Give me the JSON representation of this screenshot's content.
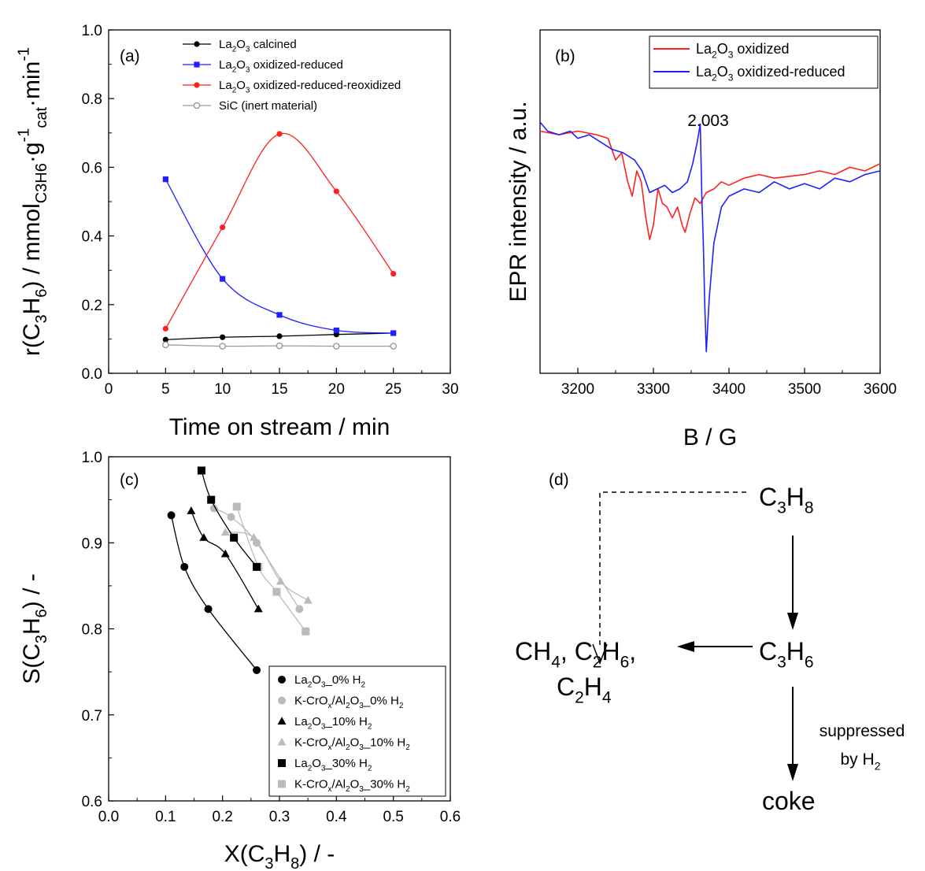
{
  "chart_data": [
    {
      "panel": "(a)",
      "type": "line",
      "xlabel": "Time on stream / min",
      "ylabel_parts": [
        "r(C",
        "3",
        "H",
        "6",
        ") / mmol",
        "C3H6",
        "·g",
        "-1",
        "cat",
        "·min",
        "-1"
      ],
      "xlim": [
        0,
        30
      ],
      "ylim": [
        0.0,
        1.0
      ],
      "xticks": [
        0,
        5,
        10,
        15,
        20,
        25,
        30
      ],
      "yticks": [
        "0.0",
        "0.2",
        "0.4",
        "0.6",
        "0.8",
        "1.0"
      ],
      "grid": false,
      "legend_position": "top-right",
      "series": [
        {
          "name": "La2O3 calcined",
          "legend_parts": [
            "La",
            "2",
            "O",
            "3",
            " calcined"
          ],
          "color": "#000000",
          "marker": "filled-circle",
          "x": [
            5,
            10,
            15,
            20,
            25
          ],
          "values": [
            0.098,
            0.105,
            0.108,
            0.113,
            0.117
          ]
        },
        {
          "name": "La2O3 oxidized-reduced",
          "legend_parts": [
            "La",
            "2",
            "O",
            "3",
            " oxidized-reduced"
          ],
          "color": "#1f1fff",
          "marker": "filled-square",
          "x": [
            5,
            10,
            15,
            20,
            25
          ],
          "values": [
            0.565,
            0.275,
            0.17,
            0.125,
            0.117
          ]
        },
        {
          "name": "La2O3 oxidized-reduced-reoxidized",
          "legend_parts": [
            "La",
            "2",
            "O",
            "3",
            " oxidized-reduced-reoxidized"
          ],
          "color": "#ff1f1f",
          "marker": "filled-circle",
          "x": [
            5,
            10,
            15,
            20,
            25
          ],
          "values": [
            0.13,
            0.425,
            0.697,
            0.53,
            0.29
          ]
        },
        {
          "name": "SiC (inert material)",
          "legend_parts": [
            "SiC (inert material)"
          ],
          "color": "#999999",
          "marker": "open-circle",
          "x": [
            5,
            10,
            15,
            20,
            25
          ],
          "values": [
            0.083,
            0.079,
            0.08,
            0.079,
            0.079
          ]
        }
      ]
    },
    {
      "panel": "(b)",
      "type": "line",
      "xlabel": "B / G",
      "ylabel": "EPR intensity / a.u.",
      "xlim": [
        3150,
        3600
      ],
      "xticks": [
        3200,
        3300,
        3400,
        3500,
        3600
      ],
      "yticks_shown": false,
      "annotation": "2.003",
      "annotation_x": 3362,
      "grid": false,
      "legend_position": "top-right",
      "series": [
        {
          "name": "La2O3 oxidized",
          "legend_parts": [
            "La",
            "2",
            "O",
            "3",
            " oxidized"
          ],
          "color": "#ff1f1f",
          "x": [
            3150,
            3175,
            3200,
            3225,
            3240,
            3250,
            3258,
            3266,
            3272,
            3278,
            3284,
            3290,
            3295,
            3300,
            3306,
            3312,
            3318,
            3325,
            3332,
            3338,
            3342,
            3348,
            3355,
            3362,
            3370,
            3380,
            3390,
            3400,
            3420,
            3440,
            3460,
            3480,
            3500,
            3520,
            3540,
            3560,
            3580,
            3600
          ],
          "values": [
            0.62,
            0.6,
            0.62,
            0.6,
            0.58,
            0.46,
            0.5,
            0.34,
            0.26,
            0.4,
            0.34,
            0.14,
            0.02,
            0.1,
            0.3,
            0.22,
            0.2,
            0.14,
            0.2,
            0.1,
            0.06,
            0.16,
            0.25,
            0.22,
            0.28,
            0.3,
            0.34,
            0.32,
            0.36,
            0.38,
            0.36,
            0.37,
            0.38,
            0.4,
            0.38,
            0.42,
            0.4,
            0.44
          ]
        },
        {
          "name": "La2O3 oxidized-reduced",
          "legend_parts": [
            "La",
            "2",
            "O",
            "3",
            " oxidized-reduced"
          ],
          "color": "#1f1fff",
          "x": [
            3150,
            3160,
            3175,
            3190,
            3200,
            3215,
            3230,
            3245,
            3260,
            3275,
            3285,
            3295,
            3305,
            3315,
            3325,
            3335,
            3345,
            3352,
            3358,
            3362,
            3364,
            3366,
            3368,
            3370,
            3374,
            3380,
            3390,
            3400,
            3420,
            3440,
            3460,
            3480,
            3500,
            3520,
            3540,
            3560,
            3580,
            3600
          ],
          "values": [
            0.67,
            0.62,
            0.6,
            0.62,
            0.58,
            0.6,
            0.56,
            0.52,
            0.5,
            0.46,
            0.4,
            0.28,
            0.3,
            0.32,
            0.28,
            0.3,
            0.34,
            0.44,
            0.56,
            0.66,
            0.28,
            0.0,
            -0.35,
            -0.6,
            -0.3,
            0.0,
            0.2,
            0.26,
            0.3,
            0.28,
            0.34,
            0.3,
            0.33,
            0.3,
            0.36,
            0.34,
            0.38,
            0.4
          ]
        }
      ]
    },
    {
      "panel": "(c)",
      "type": "scatter",
      "xlabel_parts": [
        "X(C",
        "3",
        "H",
        "8",
        ") / -"
      ],
      "ylabel_parts": [
        "S(C",
        "3",
        "H",
        "6",
        ") / -"
      ],
      "xlim": [
        0.0,
        0.6
      ],
      "ylim": [
        0.6,
        1.0
      ],
      "xticks": [
        "0.0",
        "0.1",
        "0.2",
        "0.3",
        "0.4",
        "0.5",
        "0.6"
      ],
      "yticks": [
        "0.6",
        "0.7",
        "0.8",
        "0.9",
        "1.0"
      ],
      "grid": false,
      "legend_position": "bottom-right",
      "series": [
        {
          "name": "La2O3_0% H2",
          "legend_parts": [
            "La",
            "2",
            "O",
            "3",
            "_0% H",
            "2"
          ],
          "color": "#000000",
          "marker": "circle",
          "x": [
            0.11,
            0.133,
            0.175,
            0.26
          ],
          "values": [
            0.932,
            0.872,
            0.823,
            0.752
          ]
        },
        {
          "name": "K-CrOx/Al2O3_0% H2",
          "legend_parts": [
            "K-CrO",
            "x",
            "/Al",
            "2",
            "O",
            "3",
            "_0% H",
            "2"
          ],
          "color": "#bbbbbb",
          "marker": "circle",
          "x": [
            0.185,
            0.215,
            0.26,
            0.335
          ],
          "values": [
            0.94,
            0.93,
            0.9,
            0.823
          ]
        },
        {
          "name": "La2O3_10% H2",
          "legend_parts": [
            "La",
            "2",
            "O",
            "3",
            "_10% H",
            "2"
          ],
          "color": "#000000",
          "marker": "triangle",
          "x": [
            0.145,
            0.167,
            0.205,
            0.263
          ],
          "values": [
            0.937,
            0.906,
            0.887,
            0.823
          ]
        },
        {
          "name": "K-CrOx/Al2O3_10% H2",
          "legend_parts": [
            "K-CrO",
            "x",
            "/Al",
            "2",
            "O",
            "3",
            "_10% H",
            "2"
          ],
          "color": "#bbbbbb",
          "marker": "triangle",
          "x": [
            0.205,
            0.255,
            0.302,
            0.35
          ],
          "values": [
            0.912,
            0.906,
            0.855,
            0.833
          ]
        },
        {
          "name": "La2O3_30% H2",
          "legend_parts": [
            "La",
            "2",
            "O",
            "3",
            "_30% H",
            "2"
          ],
          "color": "#000000",
          "marker": "square",
          "x": [
            0.163,
            0.18,
            0.22,
            0.26
          ],
          "values": [
            0.984,
            0.95,
            0.906,
            0.872
          ]
        },
        {
          "name": "K-CrOx/Al2O3_30% H2",
          "legend_parts": [
            "K-CrO",
            "x",
            "/Al",
            "2",
            "O",
            "3",
            "_30% H",
            "2"
          ],
          "color": "#bbbbbb",
          "marker": "square",
          "x": [
            0.225,
            0.263,
            0.295,
            0.346
          ],
          "values": [
            0.942,
            0.872,
            0.843,
            0.797
          ]
        }
      ]
    }
  ],
  "scheme": {
    "panel": "(d)",
    "c3h8": [
      "C",
      "3",
      "H",
      "8"
    ],
    "c3h6": [
      "C",
      "3",
      "H",
      "6"
    ],
    "products_line1": [
      "CH",
      "4",
      ", C",
      "2",
      "H",
      "6",
      ","
    ],
    "products_line2": [
      "C",
      "2",
      "H",
      "4"
    ],
    "suppressed_line1": "suppressed",
    "suppressed_line2": [
      "by H",
      "2"
    ],
    "coke": "coke"
  }
}
